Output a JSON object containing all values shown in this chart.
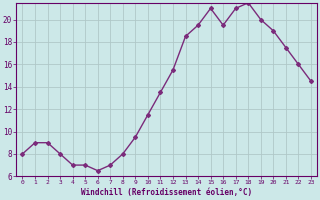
{
  "x": [
    0,
    1,
    2,
    3,
    4,
    5,
    6,
    7,
    8,
    9,
    10,
    11,
    12,
    13,
    14,
    15,
    16,
    17,
    18,
    19,
    20,
    21,
    22,
    23
  ],
  "y": [
    8.0,
    9.0,
    9.0,
    8.0,
    7.0,
    7.0,
    6.5,
    7.0,
    8.0,
    9.5,
    11.5,
    13.5,
    15.5,
    18.5,
    19.5,
    21.0,
    19.5,
    21.0,
    21.5,
    20.0,
    19.0,
    17.5,
    16.0,
    14.5
  ],
  "line_color": "#7b2b7b",
  "marker": "D",
  "marker_size": 2.0,
  "xlabel": "Windchill (Refroidissement éolien,°C)",
  "ylabel": "",
  "xlim": [
    -0.5,
    23.5
  ],
  "ylim": [
    6,
    21.5
  ],
  "yticks": [
    6,
    8,
    10,
    12,
    14,
    16,
    18,
    20
  ],
  "xticks": [
    0,
    1,
    2,
    3,
    4,
    5,
    6,
    7,
    8,
    9,
    10,
    11,
    12,
    13,
    14,
    15,
    16,
    17,
    18,
    19,
    20,
    21,
    22,
    23
  ],
  "bg_color": "#cce8e8",
  "grid_color": "#b0c8c8",
  "text_color": "#660066",
  "line_width": 1.0
}
